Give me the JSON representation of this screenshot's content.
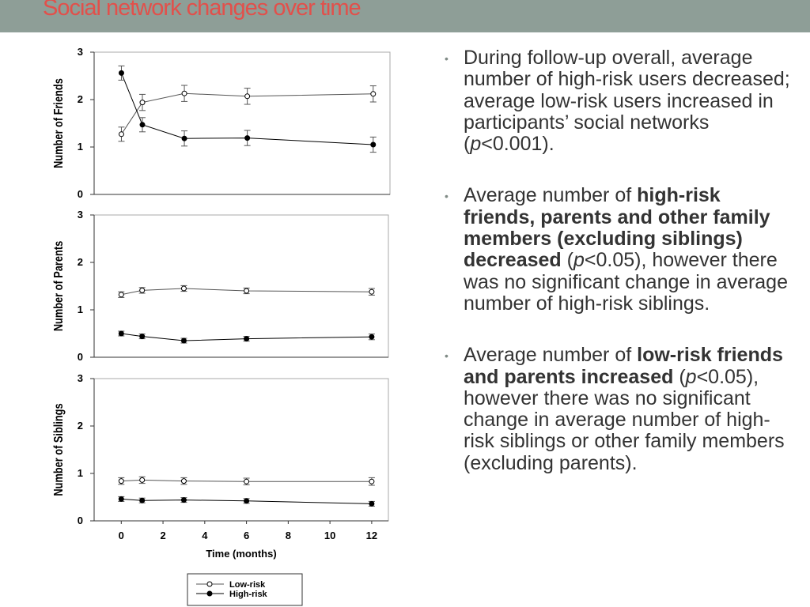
{
  "slide": {
    "title": "Social network changes over time",
    "title_color": "#e2504b",
    "header_band_color": "#8e9e97"
  },
  "bullets": [
    [
      {
        "t": "During follow-up overall, average number of high-risk users decreased; average low-risk users increased in participants’ social networks ("
      },
      {
        "t": "p",
        "s": "i"
      },
      {
        "t": "<0.001)."
      }
    ],
    [
      {
        "t": "Average number of "
      },
      {
        "t": "high-risk friends, parents and other family members (excluding siblings) decreased",
        "s": "b"
      },
      {
        "t": " ("
      },
      {
        "t": "p",
        "s": "i"
      },
      {
        "t": "<0.05), however there was no significant change in average number of high-risk siblings."
      }
    ],
    [
      {
        "t": "Average number of "
      },
      {
        "t": "low-risk friends and parents increased",
        "s": "b"
      },
      {
        "t": " ("
      },
      {
        "t": "p",
        "s": "i"
      },
      {
        "t": "<0.05), however there was no significant change in average number of high-risk siblings or other family members (excluding parents)."
      }
    ]
  ],
  "chart_data": {
    "type": "line",
    "x": [
      0,
      1,
      3,
      6,
      12
    ],
    "x_ticks": [
      0,
      2,
      4,
      6,
      8,
      10,
      12
    ],
    "xlim": [
      -1.3,
      12.8
    ],
    "ylim": [
      0,
      3
    ],
    "y_ticks": [
      0,
      1,
      2,
      3
    ],
    "xlabel": "Time (months)",
    "grid": false,
    "legend_position": "bottom",
    "legend": [
      {
        "name": "Low-risk",
        "marker": "open-circle"
      },
      {
        "name": "High-risk",
        "marker": "filled-circle"
      }
    ],
    "panels": [
      {
        "ylabel": "Number of Friends",
        "series": [
          {
            "name": "Low-risk",
            "values": [
              1.27,
              1.94,
              2.13,
              2.07,
              2.12
            ],
            "errors": [
              0.15,
              0.17,
              0.17,
              0.17,
              0.17
            ]
          },
          {
            "name": "High-risk",
            "values": [
              2.56,
              1.47,
              1.18,
              1.19,
              1.05
            ],
            "errors": [
              0.15,
              0.15,
              0.16,
              0.16,
              0.16
            ]
          }
        ]
      },
      {
        "ylabel": "Number of Parents",
        "series": [
          {
            "name": "Low-risk",
            "values": [
              1.32,
              1.41,
              1.45,
              1.4,
              1.38
            ],
            "errors": [
              0.06,
              0.06,
              0.06,
              0.06,
              0.07
            ]
          },
          {
            "name": "High-risk",
            "values": [
              0.5,
              0.44,
              0.35,
              0.39,
              0.43
            ],
            "errors": [
              0.05,
              0.05,
              0.05,
              0.05,
              0.06
            ]
          }
        ]
      },
      {
        "ylabel": "Number of Siblings",
        "series": [
          {
            "name": "Low-risk",
            "values": [
              0.84,
              0.86,
              0.84,
              0.83,
              0.83
            ],
            "errors": [
              0.07,
              0.07,
              0.07,
              0.07,
              0.08
            ]
          },
          {
            "name": "High-risk",
            "values": [
              0.46,
              0.43,
              0.44,
              0.42,
              0.36
            ],
            "errors": [
              0.05,
              0.05,
              0.05,
              0.05,
              0.05
            ]
          }
        ]
      }
    ]
  }
}
